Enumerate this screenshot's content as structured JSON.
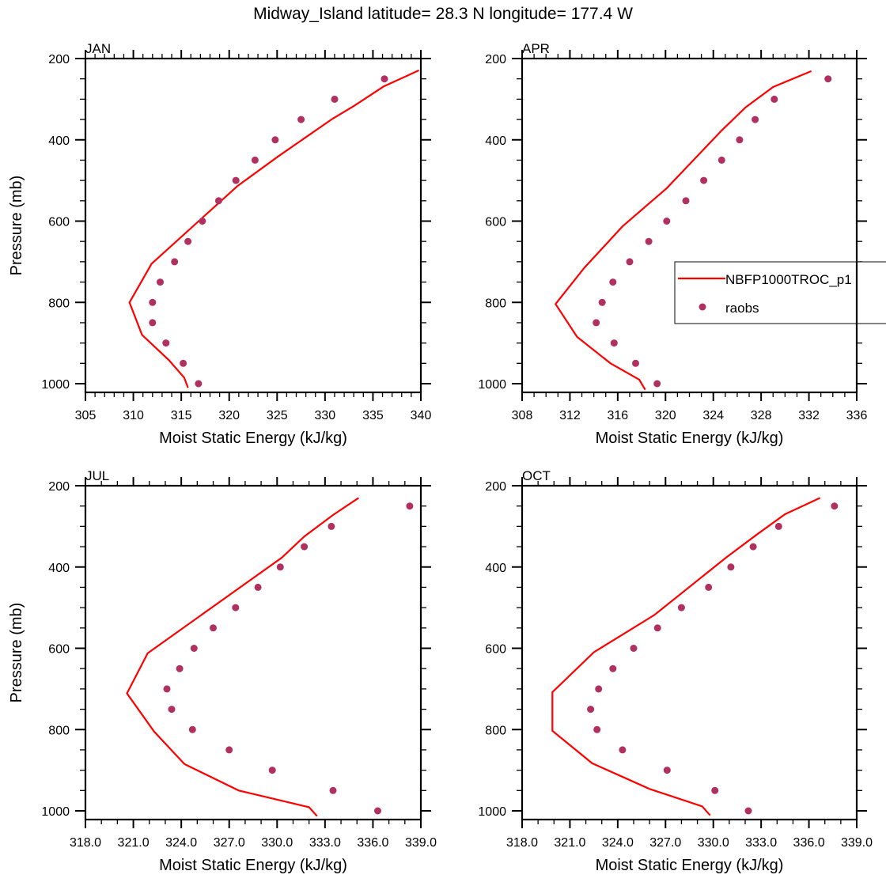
{
  "title": "Midway_Island  latitude= 28.3 N longitude= 177.4 W",
  "colors": {
    "model_line": "#ff0000",
    "raobs_marker": "#b03060",
    "axis": "#000000",
    "background": "#ffffff"
  },
  "legend": {
    "placement": "APR panel, right-center (partially clipped)",
    "entries": [
      {
        "label": "NBFP1000TROC_p1",
        "style": "line",
        "color": "#ff0000"
      },
      {
        "label": "raobs",
        "style": "marker",
        "color": "#b03060"
      }
    ]
  },
  "chart_data": [
    {
      "type": "line",
      "panel": "JAN",
      "title": "JAN",
      "xlabel": "Moist Static Energy (kJ/kg)",
      "ylabel": "Pressure (mb)",
      "xlim": [
        305,
        340
      ],
      "ylim": [
        1021,
        200
      ],
      "y_inverted": true,
      "xticks": [
        "305",
        "310",
        "315",
        "320",
        "325",
        "330",
        "335",
        "340"
      ],
      "xtick_values": [
        305,
        310,
        315,
        320,
        325,
        330,
        335,
        340
      ],
      "yticks": [
        "200",
        "400",
        "600",
        "800",
        "1000"
      ],
      "ytick_values": [
        200,
        400,
        600,
        800,
        1000
      ],
      "grid": false,
      "series": [
        {
          "name": "NBFP1000TROC_p1",
          "kind": "line",
          "p": [
            229,
            269,
            317,
            348,
            441,
            513,
            705,
            800,
            880,
            942,
            985,
            1010
          ],
          "mse": [
            339.8,
            336.1,
            333.0,
            330.8,
            325.1,
            320.9,
            311.9,
            309.6,
            310.9,
            313.7,
            315.3,
            315.7
          ]
        },
        {
          "name": "raobs",
          "kind": "scatter",
          "p": [
            250,
            300,
            350,
            400,
            450,
            500,
            550,
            600,
            650,
            700,
            750,
            800,
            850,
            900,
            950,
            1000
          ],
          "mse": [
            336.2,
            331.0,
            327.5,
            324.8,
            322.7,
            320.7,
            318.9,
            317.2,
            315.7,
            314.3,
            312.8,
            312.0,
            312.0,
            313.4,
            315.2,
            316.8
          ]
        }
      ]
    },
    {
      "type": "line",
      "panel": "APR",
      "title": "APR",
      "xlabel": "Moist Static Energy (kJ/kg)",
      "ylabel": "",
      "xlim": [
        308,
        336
      ],
      "ylim": [
        1021,
        200
      ],
      "y_inverted": true,
      "xticks": [
        "308",
        "312",
        "316",
        "320",
        "324",
        "328",
        "332",
        "336"
      ],
      "xtick_values": [
        308,
        312,
        316,
        320,
        324,
        328,
        332,
        336
      ],
      "yticks": [
        "200",
        "400",
        "600",
        "800",
        "1000"
      ],
      "ytick_values": [
        200,
        400,
        600,
        800,
        1000
      ],
      "grid": false,
      "series": [
        {
          "name": "NBFP1000TROC_p1",
          "kind": "line",
          "p": [
            231,
            270,
            320,
            377,
            519,
            613,
            715,
            804,
            885,
            950,
            990,
            1015
          ],
          "mse": [
            332.2,
            329.0,
            326.7,
            324.7,
            320.1,
            316.4,
            313.2,
            310.8,
            312.6,
            315.4,
            317.8,
            318.3
          ]
        },
        {
          "name": "raobs",
          "kind": "scatter",
          "p": [
            250,
            300,
            350,
            400,
            450,
            500,
            550,
            600,
            650,
            700,
            750,
            800,
            850,
            900,
            950,
            1000
          ],
          "mse": [
            333.6,
            329.1,
            327.5,
            326.2,
            324.7,
            323.2,
            321.7,
            320.1,
            318.6,
            317.0,
            315.6,
            314.7,
            314.2,
            315.7,
            317.5,
            319.3
          ]
        }
      ]
    },
    {
      "type": "line",
      "panel": "JUL",
      "title": "JUL",
      "xlabel": "Moist Static Energy (kJ/kg)",
      "ylabel": "Pressure (mb)",
      "xlim": [
        318,
        339
      ],
      "ylim": [
        1021,
        200
      ],
      "y_inverted": true,
      "xticks": [
        "318.0",
        "321.0",
        "324.0",
        "327.0",
        "330.0",
        "333.0",
        "336.0",
        "339.0"
      ],
      "xtick_values": [
        318,
        321,
        324,
        327,
        330,
        333,
        336,
        339
      ],
      "yticks": [
        "200",
        "400",
        "600",
        "800",
        "1000"
      ],
      "ytick_values": [
        200,
        400,
        600,
        800,
        1000
      ],
      "grid": false,
      "series": [
        {
          "name": "NBFP1000TROC_p1",
          "kind": "line",
          "p": [
            230,
            272,
            325,
            377,
            612,
            711,
            805,
            885,
            950,
            991,
            1013
          ],
          "mse": [
            335.1,
            333.5,
            331.7,
            330.3,
            321.9,
            320.6,
            322.3,
            324.2,
            327.6,
            332.0,
            332.5
          ]
        },
        {
          "name": "raobs",
          "kind": "scatter",
          "p": [
            250,
            300,
            350,
            400,
            450,
            500,
            550,
            600,
            650,
            700,
            750,
            800,
            850,
            900,
            950,
            1000
          ],
          "mse": [
            338.3,
            333.4,
            331.7,
            330.2,
            328.8,
            327.4,
            326.0,
            324.8,
            323.9,
            323.1,
            323.4,
            324.7,
            327.0,
            329.7,
            333.5,
            336.3
          ]
        }
      ]
    },
    {
      "type": "line",
      "panel": "OCT",
      "title": "OCT",
      "xlabel": "Moist Static Energy (kJ/kg)",
      "ylabel": "",
      "xlim": [
        318,
        339
      ],
      "ylim": [
        1021,
        200
      ],
      "y_inverted": true,
      "xticks": [
        "318.0",
        "321.0",
        "324.0",
        "327.0",
        "330.0",
        "333.0",
        "336.0",
        "339.0"
      ],
      "xtick_values": [
        318,
        321,
        324,
        327,
        330,
        333,
        336,
        339
      ],
      "yticks": [
        "200",
        "400",
        "600",
        "800",
        "1000"
      ],
      "ytick_values": [
        200,
        400,
        600,
        800,
        1000
      ],
      "grid": false,
      "series": [
        {
          "name": "NBFP1000TROC_p1",
          "kind": "line",
          "p": [
            230,
            270,
            321,
            377,
            518,
            610,
            708,
            803,
            883,
            946,
            989,
            1011
          ],
          "mse": [
            336.7,
            334.5,
            332.7,
            330.8,
            326.3,
            322.5,
            319.9,
            319.9,
            322.4,
            326.0,
            329.3,
            329.8
          ]
        },
        {
          "name": "raobs",
          "kind": "scatter",
          "p": [
            250,
            300,
            350,
            400,
            450,
            500,
            550,
            600,
            650,
            700,
            750,
            800,
            850,
            900,
            950,
            1000
          ],
          "mse": [
            337.6,
            334.1,
            332.5,
            331.1,
            329.7,
            328.0,
            326.5,
            325.0,
            323.7,
            322.8,
            322.3,
            322.7,
            324.3,
            327.1,
            330.1,
            332.2
          ]
        }
      ]
    }
  ]
}
